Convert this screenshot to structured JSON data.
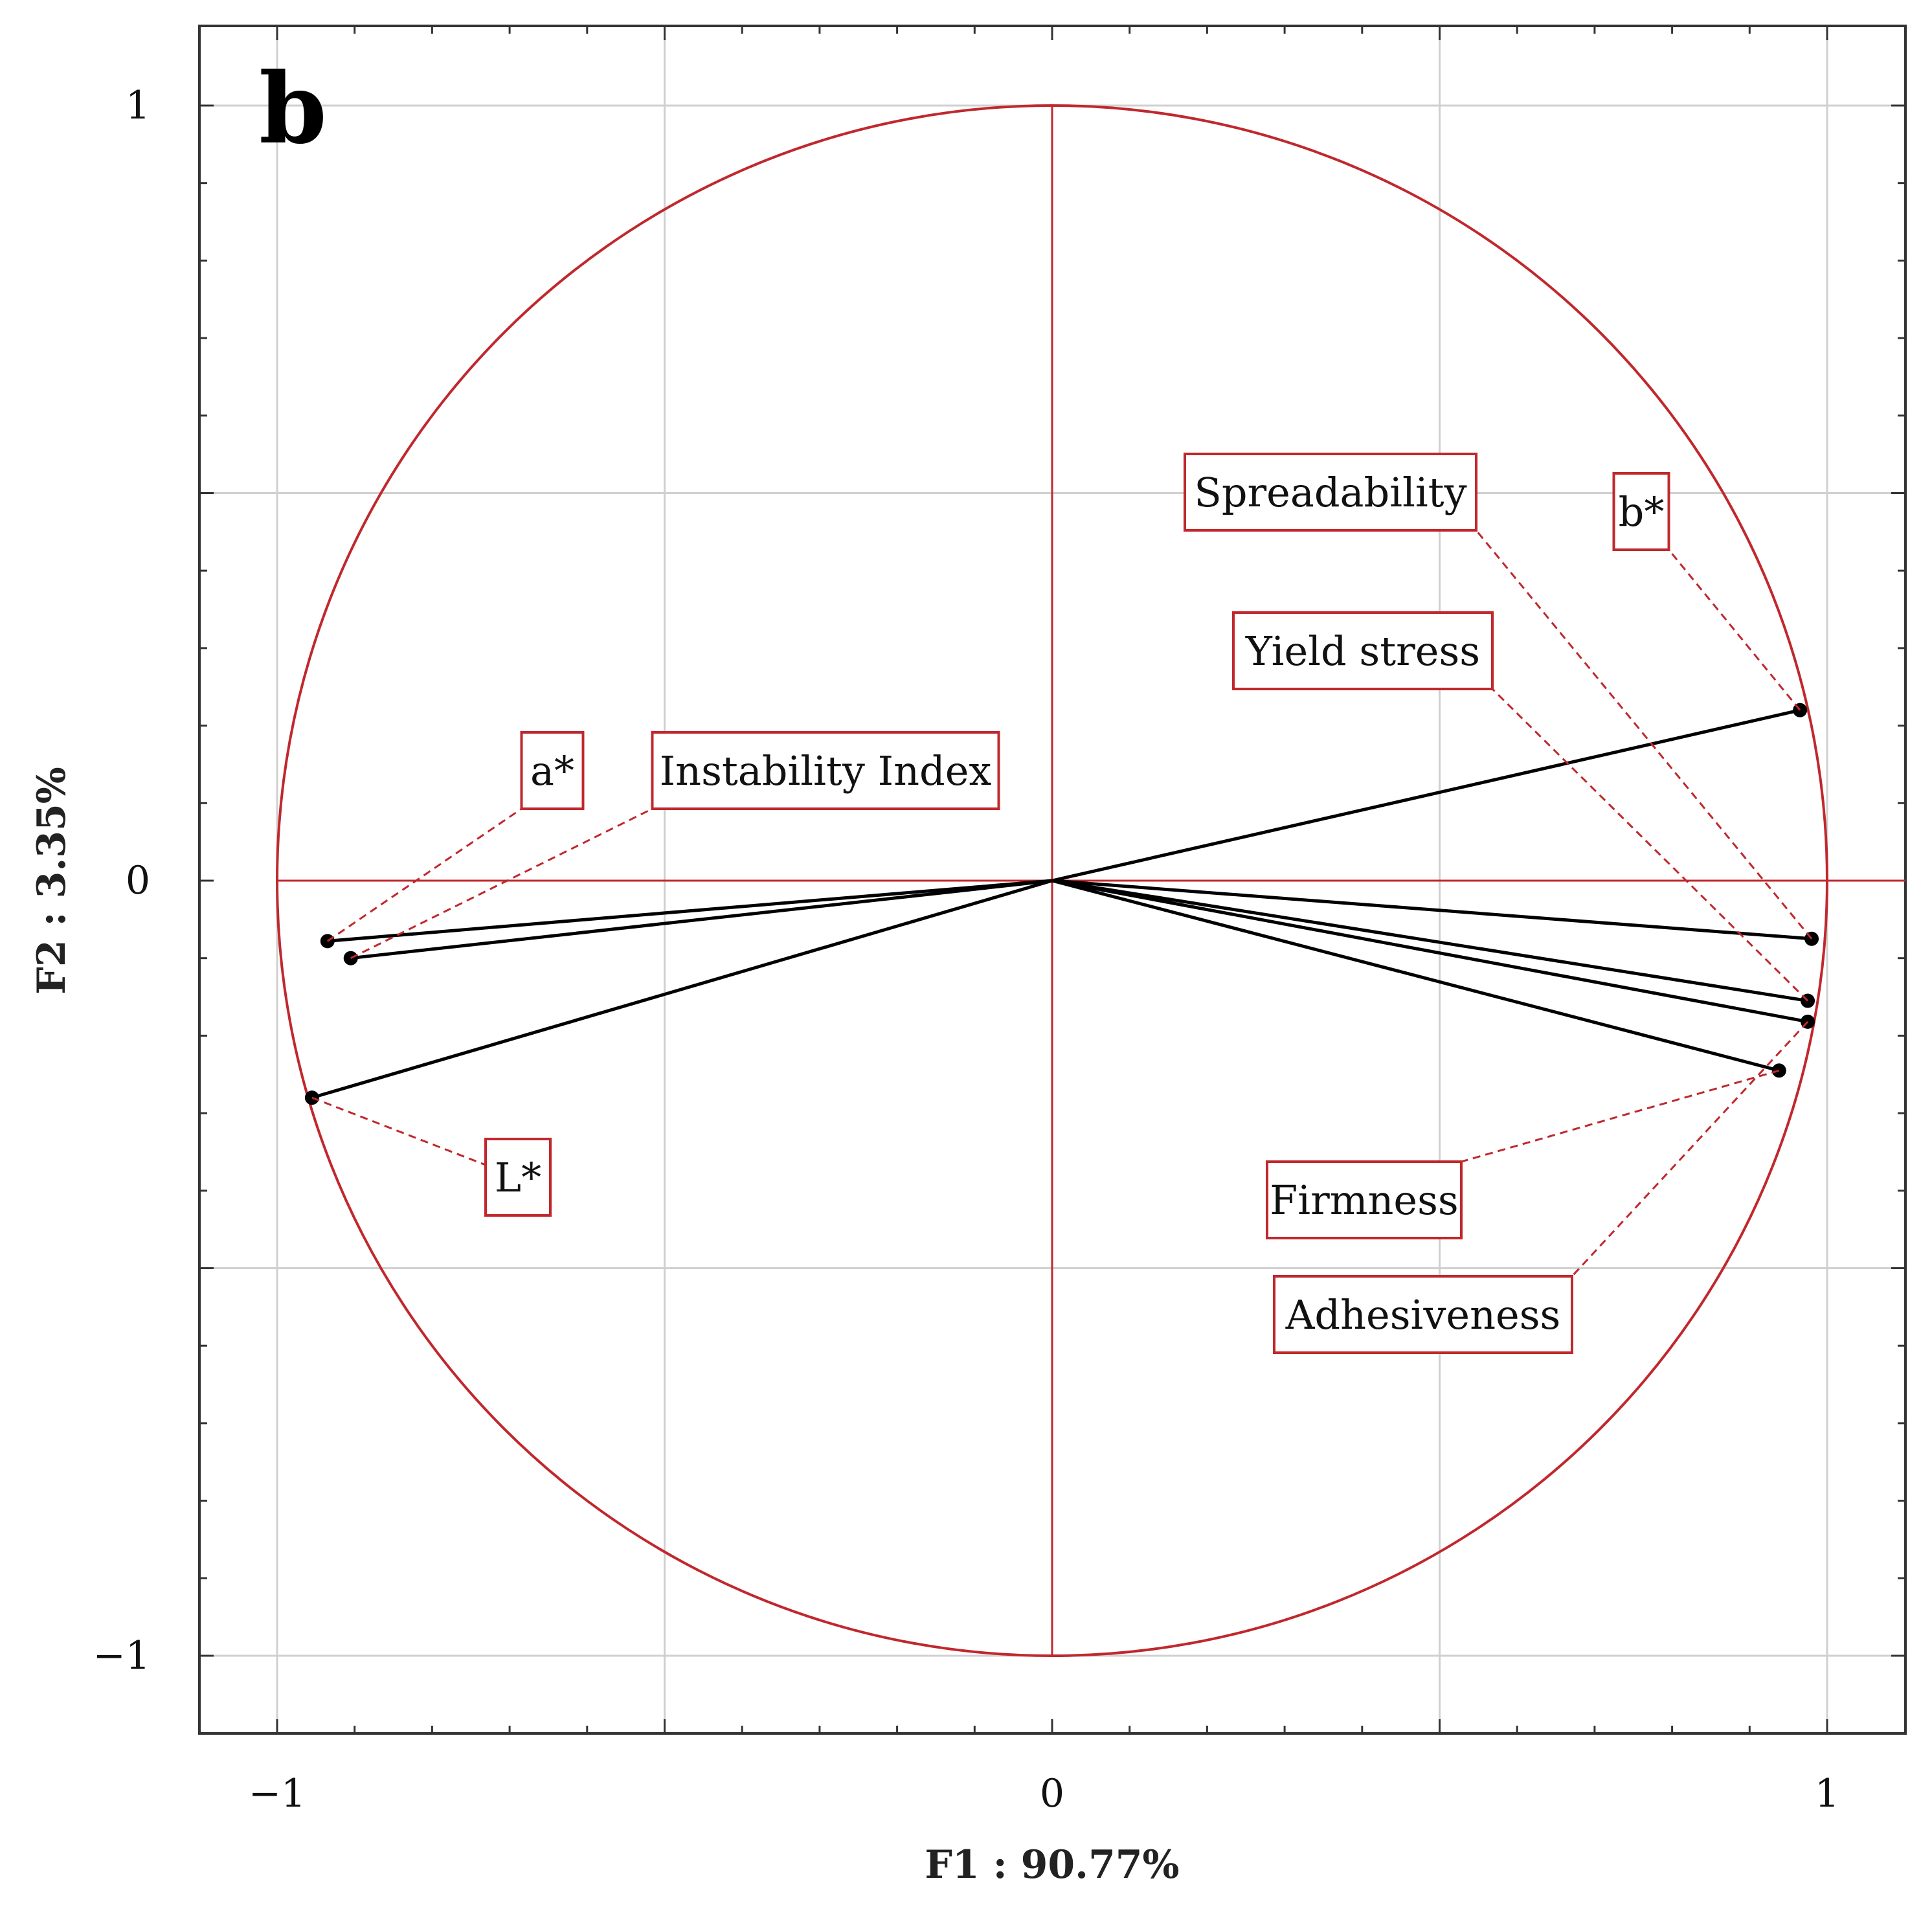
{
  "chart_data": {
    "type": "scatter",
    "subtype": "pca-correlation-circle",
    "panel_label": "b",
    "xlabel": "F1 : 90.77%",
    "ylabel": "F2 :  3.35%",
    "xlim": [
      -1.1,
      1.1
    ],
    "ylim": [
      -1.1,
      1.1
    ],
    "x_ticks": [
      {
        "value": -1,
        "label": "−1"
      },
      {
        "value": 0,
        "label": "0"
      },
      {
        "value": 1,
        "label": "1"
      }
    ],
    "y_ticks": [
      {
        "value": 1,
        "label": "1"
      },
      {
        "value": 0,
        "label": "0"
      },
      {
        "value": -1,
        "label": "−1"
      }
    ],
    "grid": true,
    "colors": {
      "circle": "#c0282d",
      "vectors": "#000000",
      "grid": "#d0d0d0",
      "frame": "#333333"
    },
    "variables": [
      {
        "name": "b*",
        "x": 0.965,
        "y": 0.22
      },
      {
        "name": "Spreadability",
        "x": 0.98,
        "y": -0.075
      },
      {
        "name": "Yield stress",
        "x": 0.975,
        "y": -0.155
      },
      {
        "name": "Adhesiveness",
        "x": 0.975,
        "y": -0.182
      },
      {
        "name": "Firmness",
        "x": 0.938,
        "y": -0.245
      },
      {
        "name": "a*",
        "x": -0.935,
        "y": -0.078
      },
      {
        "name": "Instability Index",
        "x": -0.905,
        "y": -0.1
      },
      {
        "name": "L*",
        "x": -0.955,
        "y": -0.28
      }
    ]
  }
}
